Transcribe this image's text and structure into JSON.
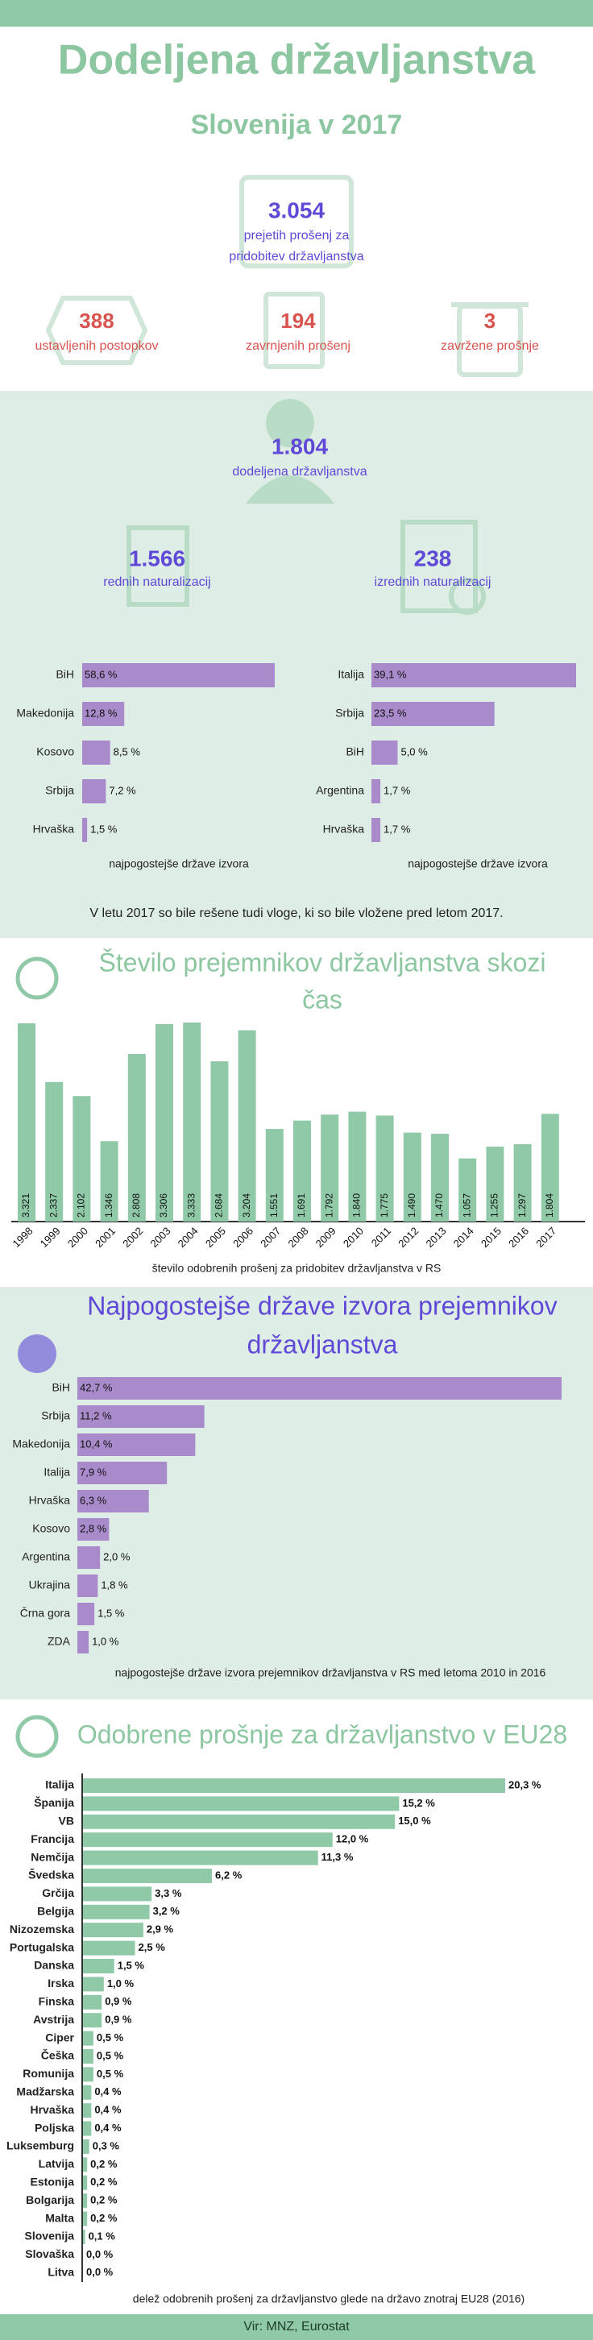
{
  "header": {
    "title": "Dodeljena državljanstva",
    "subtitle": "Slovenija v 2017"
  },
  "stats": {
    "received": {
      "value": "3.054",
      "label": [
        "prejetih prošenj za",
        "pridobitev državljanstva"
      ]
    },
    "stopped": {
      "value": "388",
      "label": "ustavljenih postopkov"
    },
    "rejected": {
      "value": "194",
      "label": "zavrnjenih prošenj"
    },
    "discarded": {
      "value": "3",
      "label": "zavržene prošnje"
    },
    "granted": {
      "value": "1.804",
      "label": "dodeljena državljanstva"
    },
    "regular": {
      "value": "1.566",
      "label": "rednih naturalizacij"
    },
    "extraordinary": {
      "value": "238",
      "label": "izrednih naturalizacij"
    },
    "note": "V letu 2017 so bile rešene tudi vloge, ki so bile vložene pred letom 2017."
  },
  "chart_data": [
    {
      "type": "bar",
      "orientation": "horizontal",
      "color": "#a98bcc",
      "caption": "najpogostejše države izvora",
      "categories": [
        "BiH",
        "Makedonija",
        "Kosovo",
        "Srbija",
        "Hrvaška"
      ],
      "values": [
        58.6,
        12.8,
        8.5,
        7.2,
        1.5
      ],
      "value_labels": [
        "58,6 %",
        "12,8 %",
        "8,5 %",
        "7,2 %",
        "1,5 %"
      ]
    },
    {
      "type": "bar",
      "orientation": "horizontal",
      "color": "#a98bcc",
      "caption": "najpogostejše države izvora",
      "categories": [
        "Italija",
        "Srbija",
        "BiH",
        "Argentina",
        "Hrvaška"
      ],
      "values": [
        39.1,
        23.5,
        5.0,
        1.7,
        1.7
      ],
      "value_labels": [
        "39,1 %",
        "23,5 %",
        "5,0 %",
        "1,7 %",
        "1,7 %"
      ]
    },
    {
      "type": "bar",
      "orientation": "vertical",
      "color": "#8fc9a7",
      "title": [
        "Število prejemnikov državljanstva skozi",
        "čas"
      ],
      "caption": "število odobrenih prošenj za pridobitev državljanstva v RS",
      "categories": [
        "1998",
        "1999",
        "2000",
        "2001",
        "2002",
        "2003",
        "2004",
        "2005",
        "2006",
        "2007",
        "2008",
        "2009",
        "2010",
        "2011",
        "2012",
        "2013",
        "2014",
        "2015",
        "2016",
        "2017"
      ],
      "values": [
        3321,
        2337,
        2102,
        1346,
        2808,
        3306,
        3333,
        2684,
        3204,
        1551,
        1691,
        1792,
        1840,
        1775,
        1490,
        1470,
        1057,
        1255,
        1297,
        1804
      ],
      "value_labels": [
        "3.321",
        "2.337",
        "2.102",
        "1.346",
        "2.808",
        "3.306",
        "3.333",
        "2.684",
        "3.204",
        "1.551",
        "1.691",
        "1.792",
        "1.840",
        "1.775",
        "1.490",
        "1.470",
        "1.057",
        "1.255",
        "1.297",
        "1.804"
      ]
    },
    {
      "type": "bar",
      "orientation": "horizontal",
      "color": "#a98bcc",
      "title": [
        "Najpogostejše države izvora prejemnikov",
        "državljanstva"
      ],
      "caption": "najpogostejše države izvora prejemnikov državljanstva v RS med letoma 2010 in 2016",
      "categories": [
        "BiH",
        "Srbija",
        "Makedonija",
        "Italija",
        "Hrvaška",
        "Kosovo",
        "Argentina",
        "Ukrajina",
        "Črna gora",
        "ZDA"
      ],
      "values": [
        42.7,
        11.2,
        10.4,
        7.9,
        6.3,
        2.8,
        2.0,
        1.8,
        1.5,
        1.0
      ],
      "value_labels": [
        "42,7 %",
        "11,2 %",
        "10,4 %",
        "7,9 %",
        "6,3 %",
        "2,8 %",
        "2,0 %",
        "1,8 %",
        "1,5 %",
        "1,0 %"
      ]
    },
    {
      "type": "bar",
      "orientation": "horizontal",
      "color": "#8fc9a7",
      "title": [
        "Odobrene prošnje za državljanstvo v EU28"
      ],
      "caption": "delež odobrenih prošenj za državljanstvo glede na državo znotraj EU28 (2016)",
      "categories": [
        "Italija",
        "Španija",
        "VB",
        "Francija",
        "Nemčija",
        "Švedska",
        "Grčija",
        "Belgija",
        "Nizozemska",
        "Portugalska",
        "Danska",
        "Irska",
        "Finska",
        "Avstrija",
        "Ciper",
        "Češka",
        "Romunija",
        "Madžarska",
        "Hrvaška",
        "Poljska",
        "Luksemburg",
        "Latvija",
        "Estonija",
        "Bolgarija",
        "Malta",
        "Slovenija",
        "Slovaška",
        "Litva"
      ],
      "values": [
        20.3,
        15.2,
        15.0,
        12.0,
        11.3,
        6.2,
        3.3,
        3.2,
        2.9,
        2.5,
        1.5,
        1.0,
        0.9,
        0.9,
        0.5,
        0.5,
        0.5,
        0.4,
        0.4,
        0.4,
        0.3,
        0.2,
        0.2,
        0.2,
        0.2,
        0.1,
        0.0,
        0.0
      ],
      "value_labels": [
        "20,3 %",
        "15,2 %",
        "15,0 %",
        "12,0 %",
        "11,3 %",
        "6,2 %",
        "3,3 %",
        "3,2 %",
        "2,9 %",
        "2,5 %",
        "1,5 %",
        "1,0 %",
        "0,9 %",
        "0,9 %",
        "0,5 %",
        "0,5 %",
        "0,5 %",
        "0,4 %",
        "0,4 %",
        "0,4 %",
        "0,3 %",
        "0,2 %",
        "0,2 %",
        "0,2 %",
        "0,2 %",
        "0,1 %",
        "0,0 %",
        "0,0 %"
      ]
    }
  ],
  "footer": "Vir: MNZ, Eurostat"
}
